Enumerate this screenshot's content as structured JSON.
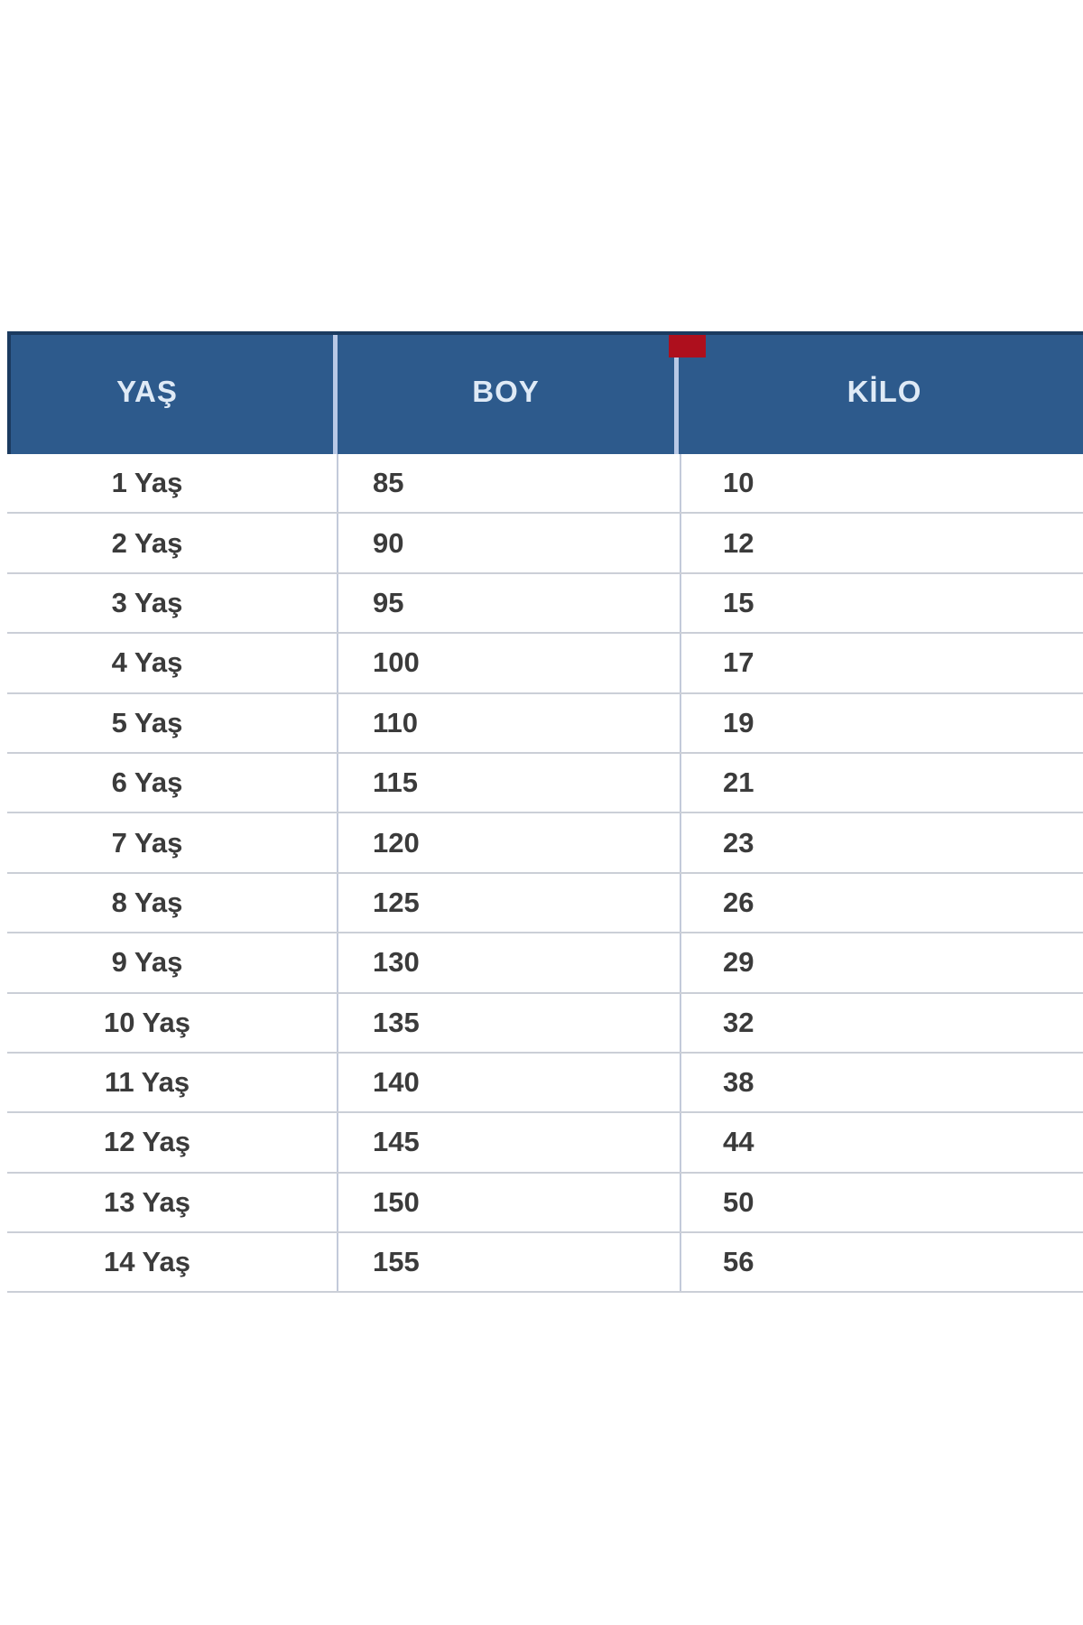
{
  "table": {
    "columns": [
      {
        "key": "yas",
        "label": "YAŞ"
      },
      {
        "key": "boy",
        "label": "BOY"
      },
      {
        "key": "kilo",
        "label": "KİLO"
      }
    ],
    "rows": [
      {
        "yas": "1 Yaş",
        "boy": "85",
        "kilo": "10"
      },
      {
        "yas": "2 Yaş",
        "boy": "90",
        "kilo": "12"
      },
      {
        "yas": "3 Yaş",
        "boy": "95",
        "kilo": "15"
      },
      {
        "yas": "4 Yaş",
        "boy": "100",
        "kilo": "17"
      },
      {
        "yas": "5 Yaş",
        "boy": "110",
        "kilo": "19"
      },
      {
        "yas": "6 Yaş",
        "boy": "115",
        "kilo": "21"
      },
      {
        "yas": "7 Yaş",
        "boy": "120",
        "kilo": "23"
      },
      {
        "yas": "8 Yaş",
        "boy": "125",
        "kilo": "26"
      },
      {
        "yas": "9 Yaş",
        "boy": "130",
        "kilo": "29"
      },
      {
        "yas": "10 Yaş",
        "boy": "135",
        "kilo": "32"
      },
      {
        "yas": "11 Yaş",
        "boy": "140",
        "kilo": "38"
      },
      {
        "yas": "12 Yaş",
        "boy": "145",
        "kilo": "44"
      },
      {
        "yas": "13 Yaş",
        "boy": "150",
        "kilo": "50"
      },
      {
        "yas": "14 Yaş",
        "boy": "155",
        "kilo": "56"
      }
    ]
  },
  "chart_data": {
    "type": "table",
    "title": "",
    "columns": [
      "YAŞ",
      "BOY",
      "KİLO"
    ],
    "rows": [
      [
        "1 Yaş",
        85,
        10
      ],
      [
        "2 Yaş",
        90,
        12
      ],
      [
        "3 Yaş",
        95,
        15
      ],
      [
        "4 Yaş",
        100,
        17
      ],
      [
        "5 Yaş",
        110,
        19
      ],
      [
        "6 Yaş",
        115,
        21
      ],
      [
        "7 Yaş",
        120,
        23
      ],
      [
        "8 Yaş",
        125,
        26
      ],
      [
        "9 Yaş",
        130,
        29
      ],
      [
        "10 Yaş",
        135,
        32
      ],
      [
        "11 Yaş",
        140,
        38
      ],
      [
        "12 Yaş",
        145,
        44
      ],
      [
        "13 Yaş",
        150,
        50
      ],
      [
        "14 Yaş",
        155,
        56
      ]
    ]
  },
  "colors": {
    "header_bg": "#2d5a8c",
    "header_border": "#1b3b60",
    "header_text": "#dfeaf6",
    "header_divider": "#b9c9e6",
    "marker_red": "#ae0f1d",
    "row_text": "#3b3b3b",
    "row_divider": "#cbcfd7",
    "column_divider": "#c3cada",
    "background": "#ffffff"
  }
}
